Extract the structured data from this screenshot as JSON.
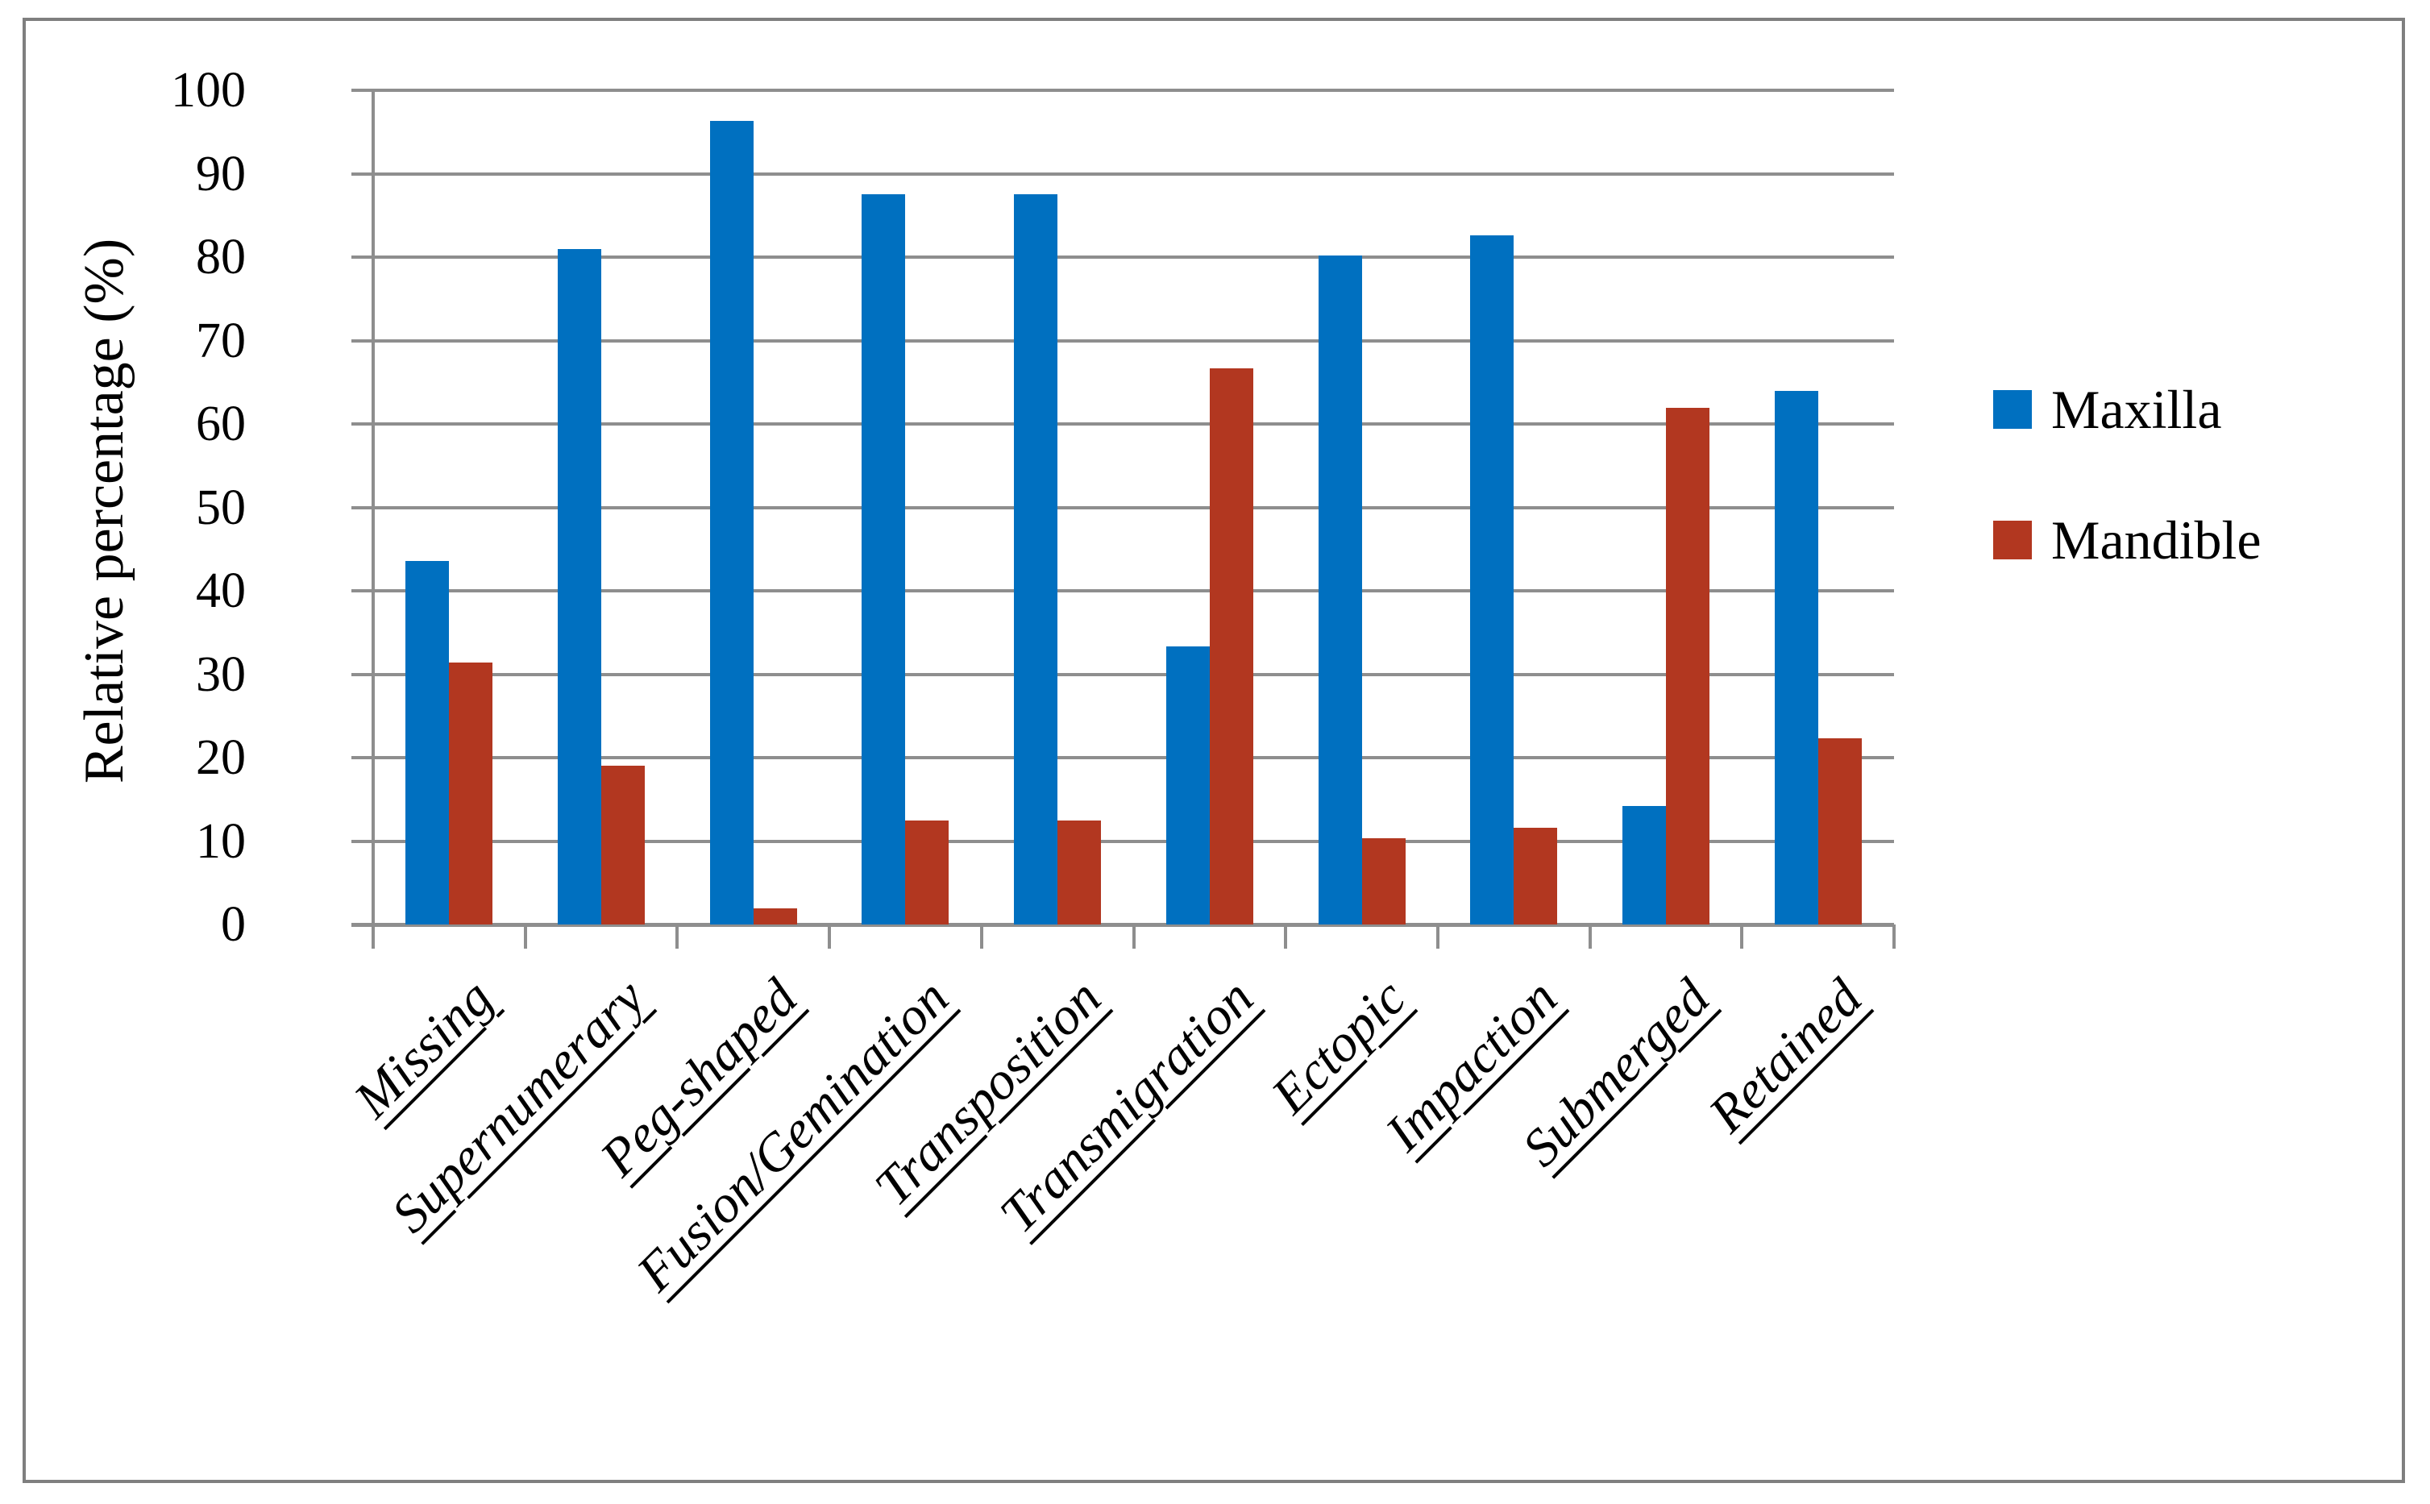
{
  "figure": {
    "ylabel": "Relative percentage (%)",
    "legend": {
      "items": [
        {
          "label": "Maxilla",
          "color": "#0070C0"
        },
        {
          "label": "Mandible",
          "color": "#B23720"
        }
      ]
    },
    "colors": {
      "gridline": "#8E8E8E",
      "frame_border": "#7F7F7F",
      "background": "#FFFFFF",
      "text": "#000000"
    }
  },
  "chart_data": {
    "type": "bar",
    "title": "",
    "xlabel": "",
    "ylabel": "Relative percentage (%)",
    "categories": [
      "Missing",
      "Supernumerary",
      "Peg-shaped",
      "Fusion/Gemination",
      "Transposition",
      "Transmigration",
      "Ectopic",
      "Impaction",
      "Submerged",
      "Retained"
    ],
    "series": [
      {
        "name": "Maxilla",
        "color": "#0070C0",
        "values": [
          43.6,
          81.0,
          96.3,
          87.5,
          87.5,
          33.3,
          80.2,
          82.6,
          14.2,
          64.0
        ]
      },
      {
        "name": "Mandible",
        "color": "#B23720",
        "values": [
          31.4,
          19.0,
          1.9,
          12.5,
          12.5,
          66.7,
          10.3,
          11.6,
          61.9,
          22.3
        ]
      }
    ],
    "ylim": [
      0,
      100
    ],
    "ytick_step": 10,
    "ytick_labels": [
      "0",
      "10",
      "20",
      "30",
      "40",
      "50",
      "60",
      "70",
      "80",
      "90",
      "100"
    ],
    "grid": "horizontal",
    "legend_position": "right"
  }
}
